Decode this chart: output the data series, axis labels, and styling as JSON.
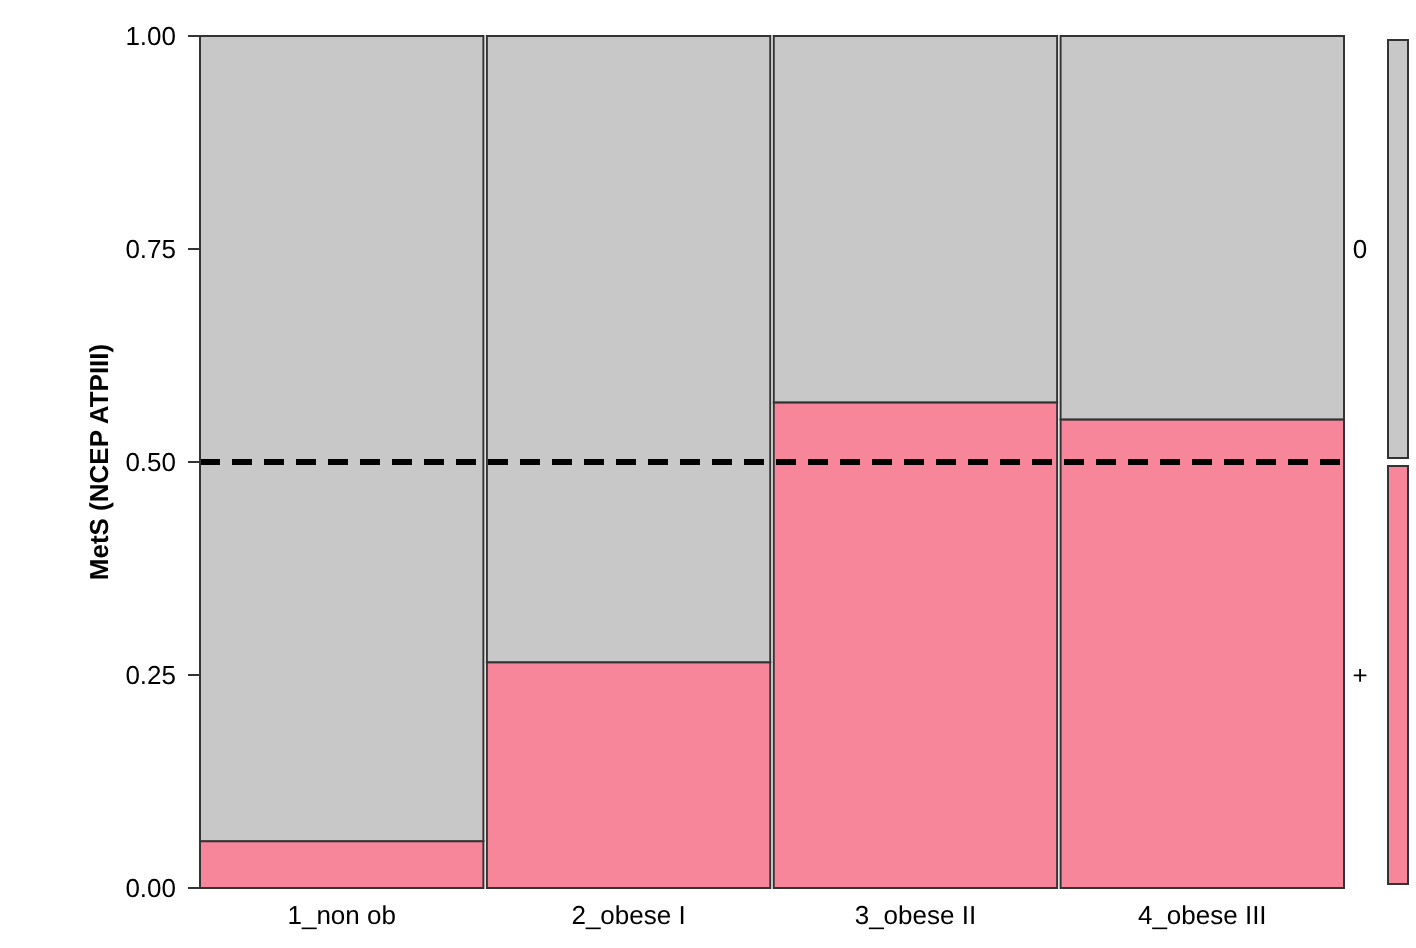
{
  "chart_data": {
    "type": "bar",
    "stacked": true,
    "ylabel": "MetS (NCEP ATPIII)",
    "categories": [
      "1_non ob",
      "2_obese I",
      "3_obese II",
      "4_obese III"
    ],
    "series": [
      {
        "name": "+",
        "color": "#f7869a",
        "values": [
          0.055,
          0.265,
          0.57,
          0.55
        ]
      },
      {
        "name": "0",
        "color": "#c8c8c8",
        "values": [
          0.945,
          0.735,
          0.43,
          0.45
        ]
      }
    ],
    "ylim": [
      0,
      1
    ],
    "yticks": [
      {
        "value": 0,
        "label": "0.00"
      },
      {
        "value": 0.25,
        "label": "0.25"
      },
      {
        "value": 0.5,
        "label": "0.50"
      },
      {
        "value": 0.75,
        "label": "0.75"
      },
      {
        "value": 1,
        "label": "1.00"
      }
    ],
    "ref_lines": [
      {
        "axis": "y",
        "value": 0.5,
        "color": "#000000",
        "line_style": "dashed"
      }
    ],
    "legend": "right"
  }
}
